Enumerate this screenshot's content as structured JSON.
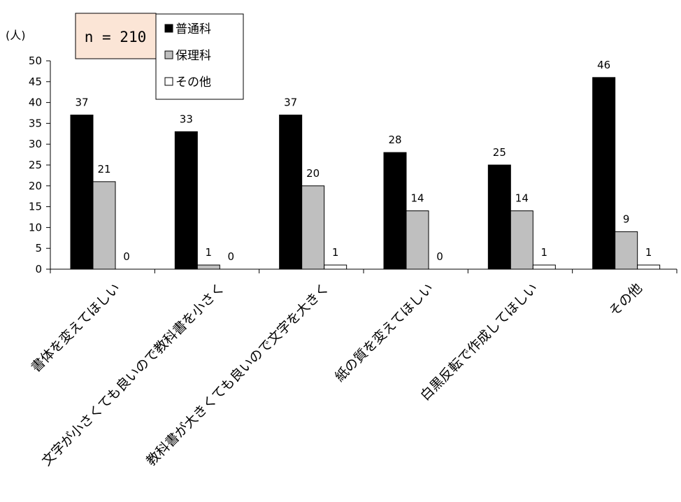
{
  "chart_data": {
    "type": "bar",
    "unit_label": "(人)",
    "sample_note": "n = 210",
    "categories": [
      "書体を変えてほしい",
      "文字が小さくても良いので教科書を小さく",
      "教科書が大きくても良いので文字を大きく",
      "紙の質を変えてほしい",
      "白黒反転で作成してほしい",
      "その他"
    ],
    "series": [
      {
        "name": "普通科",
        "color": "#000000",
        "values": [
          37,
          33,
          37,
          28,
          25,
          46
        ]
      },
      {
        "name": "保理科",
        "color": "#bfbfbf",
        "values": [
          21,
          1,
          20,
          14,
          14,
          9
        ]
      },
      {
        "name": "その他",
        "color": "#ffffff",
        "values": [
          0,
          0,
          1,
          0,
          1,
          1
        ]
      }
    ],
    "ylim": [
      0,
      50
    ],
    "yticks": [
      0,
      5,
      10,
      15,
      20,
      25,
      30,
      35,
      40,
      45,
      50
    ],
    "data_labels": true,
    "grid": false,
    "legend_position": "top-center",
    "note_box_color": "#fbe5d6"
  }
}
